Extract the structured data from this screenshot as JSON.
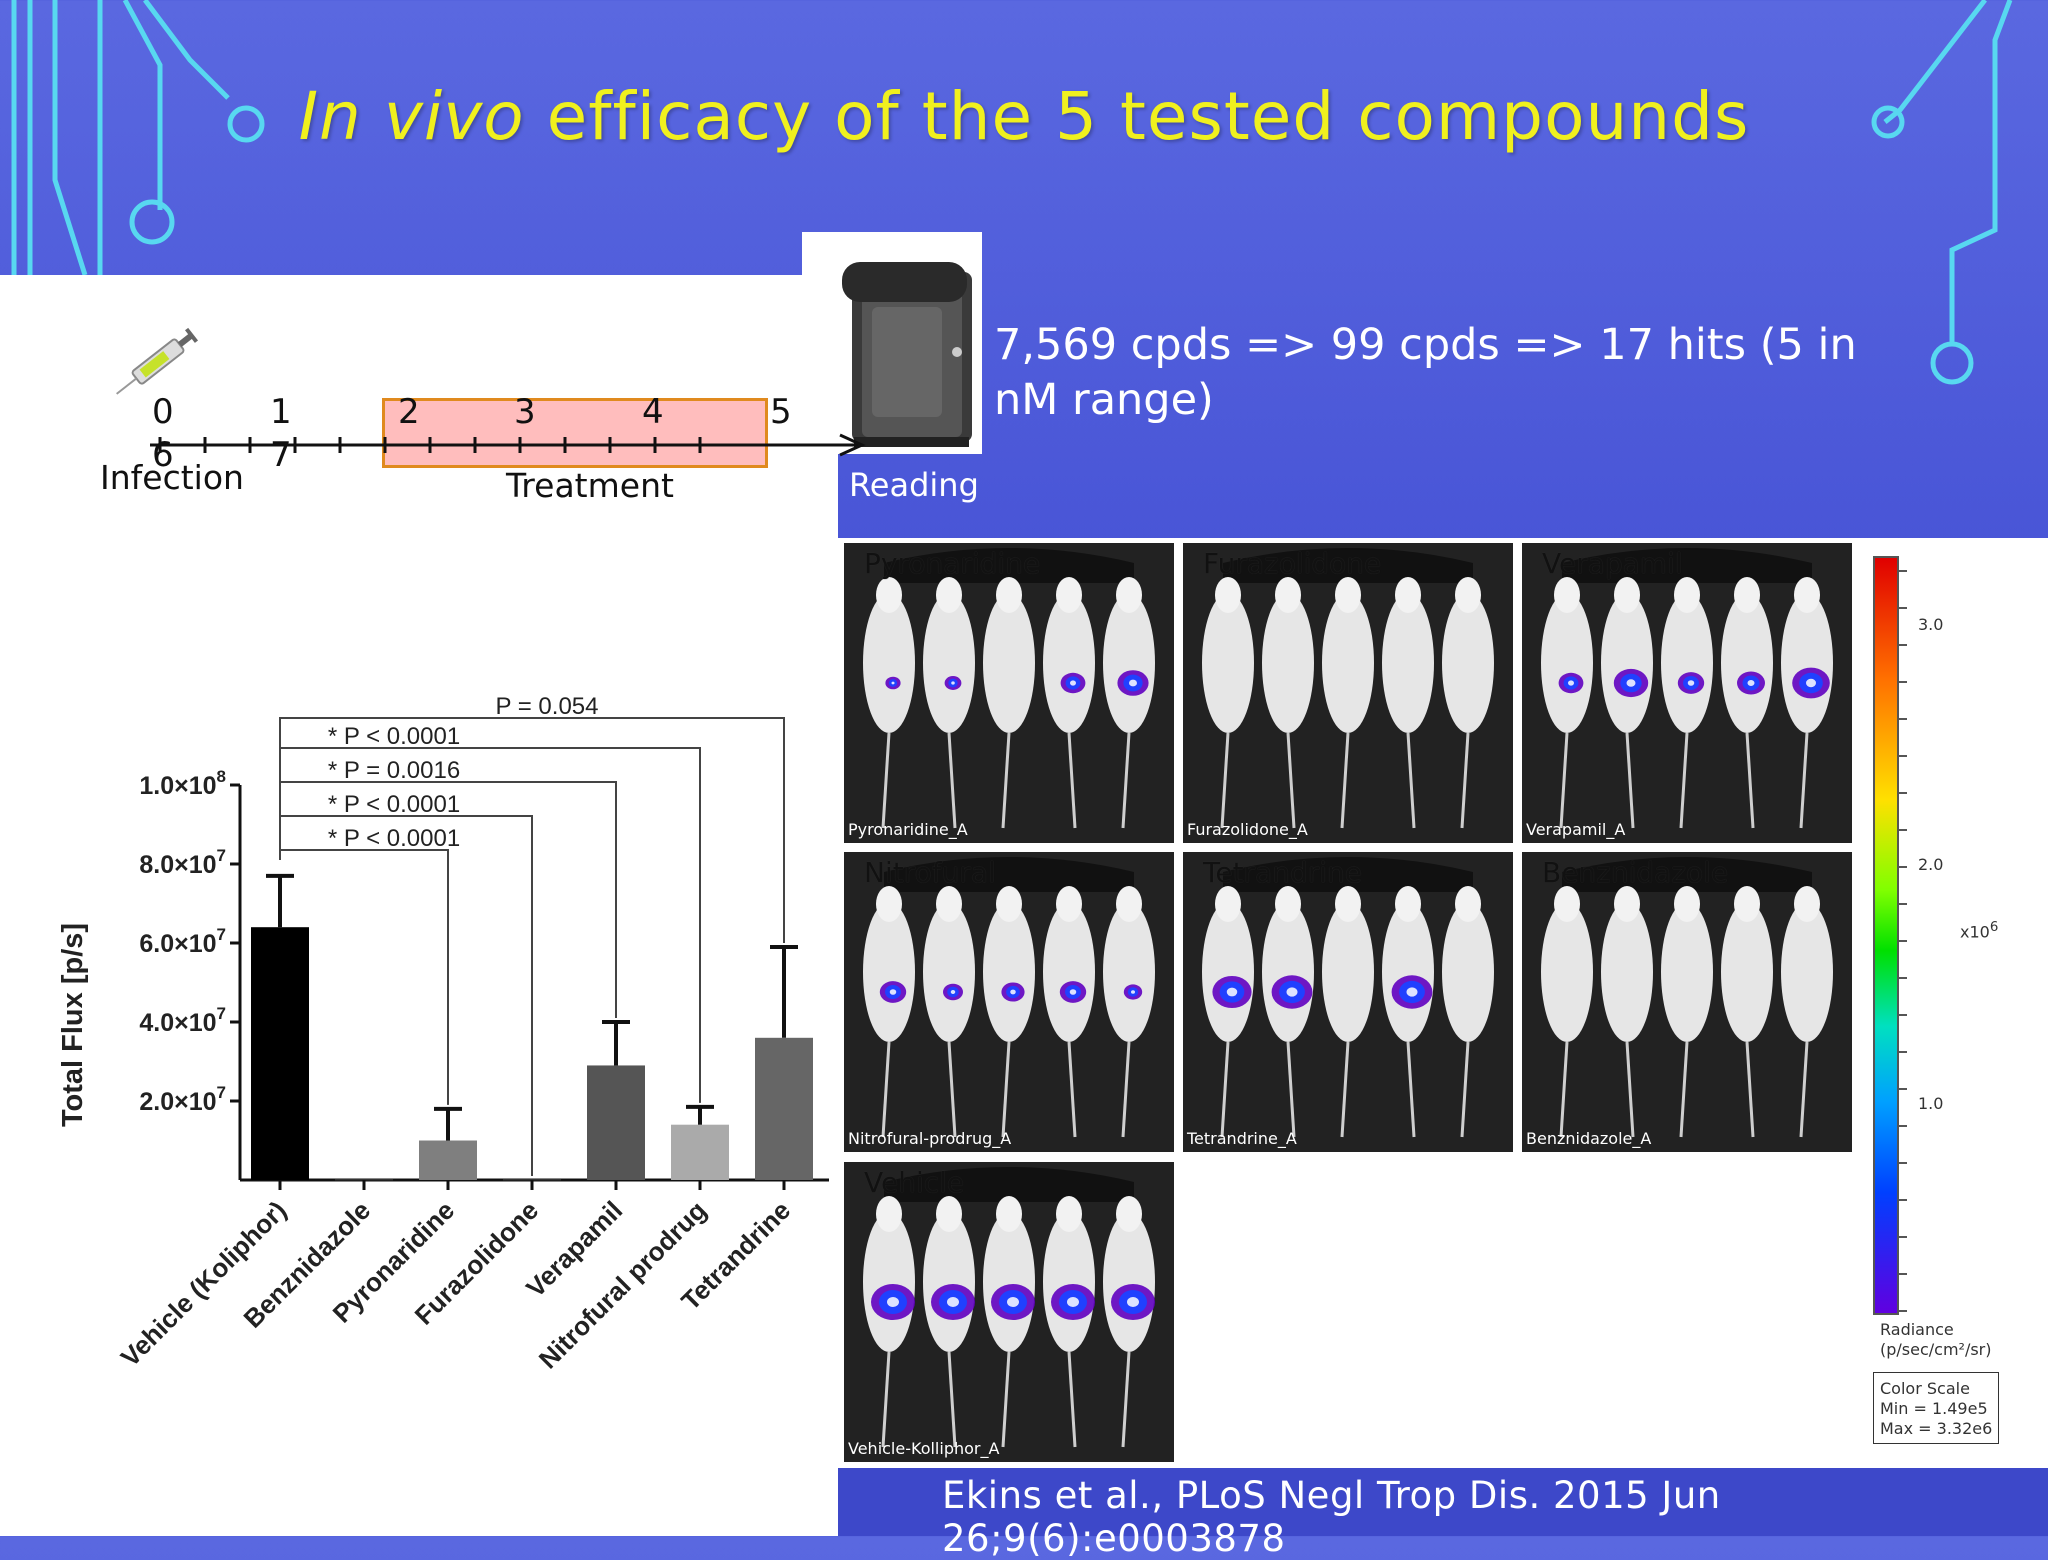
{
  "slide": {
    "title_italic": "In vivo",
    "title_rest": " efficacy of the 5 tested compounds",
    "summary": "7,569 cpds => 99 cpds => 17 hits (5 in nM range)",
    "reading": "Reading",
    "citation": "Ekins et al., PLoS Negl Trop Dis. 2015 Jun 26;9(6):e0003878",
    "colors": {
      "title": "#f0f01e",
      "background": "#4450d4",
      "treatment_box": "#ffbdbd",
      "treatment_border": "#e08a1e"
    }
  },
  "timeline": {
    "days": [
      "0",
      "1",
      "2",
      "3",
      "4",
      "5",
      "6",
      "7"
    ],
    "infection_label": "Infection",
    "treatment_label": "Treatment",
    "icons": [
      "syringe-icon",
      "imager-icon"
    ]
  },
  "chart_data": {
    "type": "bar",
    "ylabel": "Total Flux [p/s]",
    "ylim": [
      0,
      100000000
    ],
    "yticks": [
      {
        "value": 20000000,
        "label": "2.0×10",
        "exp": "7"
      },
      {
        "value": 40000000,
        "label": "4.0×10",
        "exp": "7"
      },
      {
        "value": 60000000,
        "label": "6.0×10",
        "exp": "7"
      },
      {
        "value": 80000000,
        "label": "8.0×10",
        "exp": "7"
      },
      {
        "value": 100000000,
        "label": "1.0×10",
        "exp": "8"
      }
    ],
    "categories": [
      "Vehicle (Koliphor)",
      "Benznidazole",
      "Pyronaridine",
      "Furazolidone",
      "Verapamil",
      "Nitrofural prodrug",
      "Tetrandrine"
    ],
    "values": [
      64000000,
      400000,
      10000000,
      400000,
      29000000,
      14000000,
      36000000
    ],
    "errors": [
      13000000,
      0,
      8000000,
      0,
      11000000,
      4500000,
      23000000
    ],
    "colors": [
      "#000000",
      "#333333",
      "#7f7f7f",
      "#333333",
      "#555555",
      "#aaaaaa",
      "#666666"
    ],
    "comparisons": [
      {
        "target": 2,
        "label": "* P < 0.0001"
      },
      {
        "target": 3,
        "label": "* P < 0.0001"
      },
      {
        "target": 4,
        "label": "* P = 0.0016"
      },
      {
        "target": 5,
        "label": "* P < 0.0001"
      },
      {
        "target": 6,
        "label": "P = 0.054"
      }
    ]
  },
  "imaging": {
    "panels": [
      {
        "title": "Pyronaridine",
        "label": "Pyronaridine_A"
      },
      {
        "title": "Furazolidone",
        "label": "Furazolidone_A"
      },
      {
        "title": "Verapamil",
        "label": "Verapamil_A"
      },
      {
        "title": "Nitrofural",
        "label": "Nitrofural-prodrug_A"
      },
      {
        "title": "Tetrandrine",
        "label": "Tetrandrine_A"
      },
      {
        "title": "Benznidazole",
        "label": "Benznidazole_A"
      },
      {
        "title": "Vehicle",
        "label": "Vehicle-Kolliphor_A"
      }
    ],
    "signal": [
      [
        0.1,
        0.15,
        0,
        0.4,
        0.6
      ],
      [
        0,
        0,
        0,
        0,
        0
      ],
      [
        0.4,
        0.7,
        0.45,
        0.5,
        0.8
      ],
      [
        0.45,
        0.25,
        0.35,
        0.45,
        0.2
      ],
      [
        0.85,
        0.9,
        0,
        0.9,
        0
      ],
      [
        0,
        0,
        0,
        0,
        0
      ],
      [
        1,
        1,
        1,
        1,
        1
      ]
    ],
    "colorbar": {
      "ticks": [
        "3.0",
        "2.0",
        "1.0"
      ],
      "multiplier": "x10",
      "multiplier_exp": "6",
      "unit_line1": "Radiance",
      "unit_line2": "(p/sec/cm²/sr)",
      "scale_title": "Color Scale",
      "scale_min": "Min = 1.49e5",
      "scale_max": "Max = 3.32e6"
    }
  }
}
